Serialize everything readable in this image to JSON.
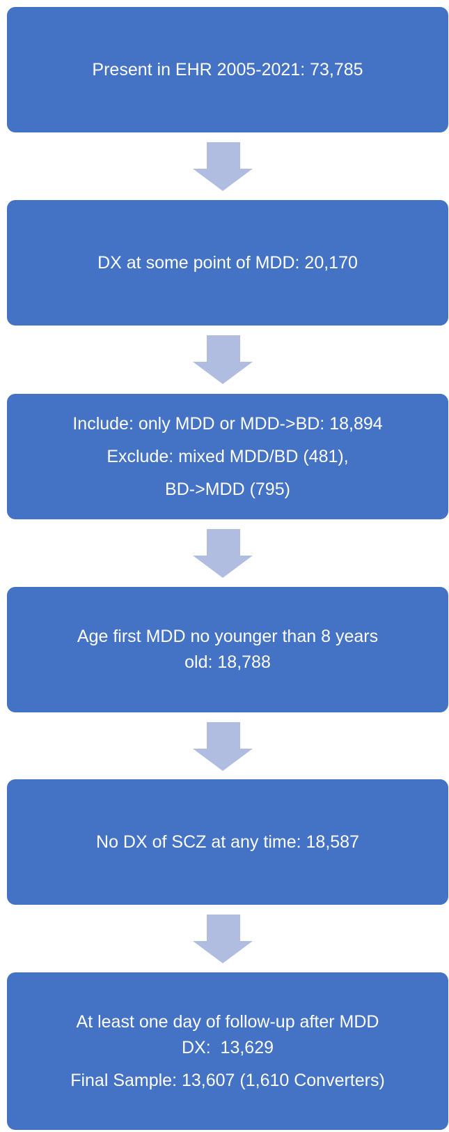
{
  "nodes": [
    {
      "paragraphs": [
        [
          "Present in EHR 2005-2021: 73,785"
        ]
      ]
    },
    {
      "paragraphs": [
        [
          "DX at some point of MDD: 20,170"
        ]
      ]
    },
    {
      "paragraphs": [
        [
          "Include: only MDD or MDD->BD: 18,894"
        ],
        [
          "Exclude: mixed MDD/BD (481),"
        ],
        [
          "BD->MDD (795)"
        ]
      ]
    },
    {
      "paragraphs": [
        [
          "Age first MDD no younger than 8 years",
          "old: 18,788"
        ]
      ]
    },
    {
      "paragraphs": [
        [
          "No DX of SCZ at any time: 18,587"
        ]
      ]
    },
    {
      "paragraphs": [
        [
          "At least one day of follow-up after MDD",
          "DX:  13,629"
        ],
        [
          "Final Sample: 13,607 (1,610 Converters)"
        ]
      ]
    }
  ]
}
